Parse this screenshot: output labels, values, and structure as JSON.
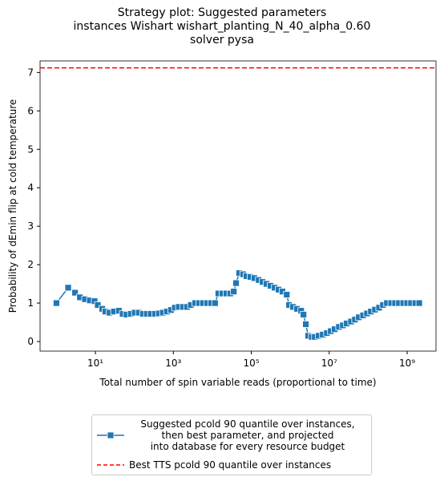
{
  "chart_data": {
    "type": "line",
    "title": "Strategy plot: Suggested parameters\n instances Wishart wishart_planting_N_40_alpha_0.60\n solver pysa",
    "xlabel": "Total number of spin variable reads (proportional to time)",
    "ylabel": "Probability of dEmin flip at cold temperature",
    "log_x": true,
    "xlim": [
      0.38,
      5500000000
    ],
    "ylim": [
      -0.25,
      7.3
    ],
    "xticks": [
      {
        "value": 10,
        "label": "10¹"
      },
      {
        "value": 1000,
        "label": "10³"
      },
      {
        "value": 100000,
        "label": "10⁵"
      },
      {
        "value": 10000000,
        "label": "10⁷"
      },
      {
        "value": 1000000000,
        "label": "10⁹"
      }
    ],
    "yticks": [
      0,
      1,
      2,
      3,
      4,
      5,
      6,
      7
    ],
    "series": [
      {
        "name": "Suggested pcold 90 quantile over instances,\n  then best parameter, and projected\n into database for every resource budget",
        "color": "#1f77b4",
        "marker": "square",
        "x": [
          1,
          2,
          3,
          4,
          5.4,
          7.2,
          9.5,
          11.5,
          15,
          18,
          23,
          30,
          40,
          50,
          63,
          81,
          102,
          130,
          166,
          209,
          263,
          339,
          427,
          537,
          684,
          871,
          1096,
          1380,
          1778,
          2239,
          2818,
          3631,
          4571,
          5754,
          7413,
          9333,
          11749,
          14290,
          18200,
          22900,
          28840,
          35500,
          40700,
          49000,
          61700,
          75200,
          95500,
          120200,
          154900,
          195000,
          245500,
          312600,
          398000,
          501000,
          631000,
          813000,
          933000,
          1175000,
          1496000,
          1905000,
          2188000,
          2512000,
          2884000,
          3548000,
          4266000,
          5370000,
          6839000,
          8710000,
          10960000,
          13800000,
          17780000,
          22390000,
          28180000,
          36310000,
          45710000,
          57540000,
          74130000,
          93330000,
          117500000,
          149600000,
          190500000,
          239900000,
          302000000,
          389000000,
          490000000,
          616600000,
          794300000,
          1000000000,
          1259000000,
          1622000000,
          2042000000
        ],
        "values": [
          1.0,
          1.4,
          1.27,
          1.15,
          1.1,
          1.07,
          1.05,
          0.95,
          0.85,
          0.78,
          0.75,
          0.78,
          0.8,
          0.72,
          0.7,
          0.72,
          0.75,
          0.75,
          0.72,
          0.72,
          0.72,
          0.72,
          0.73,
          0.75,
          0.78,
          0.82,
          0.88,
          0.9,
          0.9,
          0.9,
          0.95,
          1.0,
          1.0,
          1.0,
          1.0,
          1.0,
          1.0,
          1.25,
          1.25,
          1.25,
          1.25,
          1.3,
          1.52,
          1.78,
          1.75,
          1.7,
          1.68,
          1.65,
          1.6,
          1.55,
          1.5,
          1.45,
          1.4,
          1.35,
          1.3,
          1.22,
          0.95,
          0.9,
          0.85,
          0.8,
          0.7,
          0.45,
          0.15,
          0.12,
          0.12,
          0.15,
          0.18,
          0.22,
          0.27,
          0.32,
          0.38,
          0.42,
          0.47,
          0.52,
          0.57,
          0.63,
          0.68,
          0.73,
          0.78,
          0.83,
          0.88,
          0.95,
          1.0,
          1.0,
          1.0,
          1.0,
          1.0,
          1.0,
          1.0,
          1.0,
          1.0
        ]
      }
    ],
    "reference_line": {
      "name": "Best TTS pcold 90 quantile over instances",
      "color": "#ff0000",
      "value": 7.12
    }
  }
}
